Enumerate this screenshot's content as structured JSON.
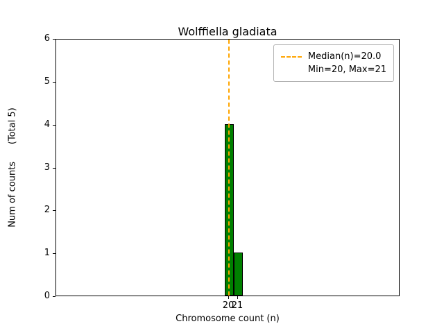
{
  "chart_data": {
    "type": "bar",
    "title": "Wolffiella gladiata",
    "xlabel": "Chromosome count (n)",
    "ylabel": "Num of counts      (Total 5)",
    "categories": [
      20,
      21
    ],
    "values": [
      4,
      1
    ],
    "ylim": [
      0,
      6
    ],
    "yticks": [
      0,
      1,
      2,
      3,
      4,
      5,
      6
    ],
    "xticks": [
      20,
      21
    ],
    "median": 20.0,
    "min": 20,
    "max": 21,
    "total": 5,
    "bar_color": "#008000",
    "bar_edge_color": "#000000",
    "median_line_color": "#FFA500",
    "legend_position": "upper right",
    "grid": false
  },
  "legend": {
    "median_label": "Median(n)=20.0",
    "minmax_label": "Min=20, Max=21"
  }
}
